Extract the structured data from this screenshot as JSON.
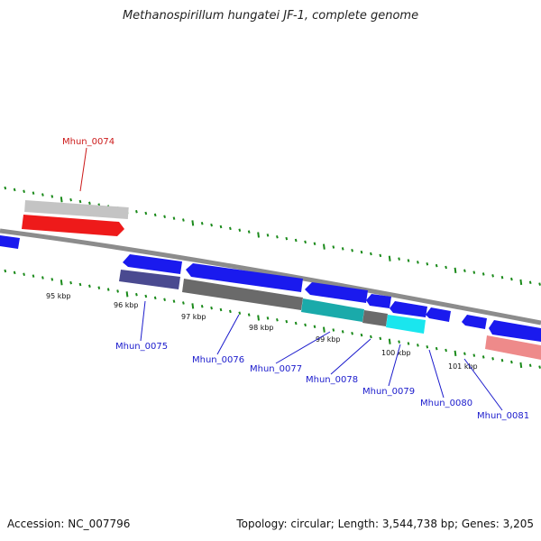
{
  "title": "Methanospirillum hungatei JF-1, complete genome",
  "footer": {
    "accession": "Accession: NC_007796",
    "summary": "Topology: circular; Length: 3,544,738 bp; Genes: 3,205"
  },
  "colors": {
    "backbone": "#8c8c8c",
    "tick": "#1a8a1a",
    "label_blue": "#1a1acc",
    "label_red": "#cc1a1a"
  },
  "kbp_labels": [
    "95 kbp",
    "96 kbp",
    "97 kbp",
    "98 kbp",
    "99 kbp",
    "100 kbp",
    "101 kbp"
  ],
  "genes": [
    {
      "id": "g1",
      "label": "",
      "color": "#1a1aee"
    },
    {
      "id": "g2",
      "label": "",
      "color": "#1a1aee"
    },
    {
      "id": "g3",
      "label": "",
      "color": "#1a1aee"
    },
    {
      "id": "g4",
      "label": "",
      "color": "#1a1aee"
    },
    {
      "id": "g5",
      "label": "",
      "color": "#1a1aee"
    },
    {
      "id": "g6",
      "label": "",
      "color": "#1a1aee"
    },
    {
      "id": "g7",
      "label": "",
      "color": "#1a1aee"
    },
    {
      "id": "g8",
      "label": "",
      "color": "#1a1aee"
    },
    {
      "id": "g9",
      "label": "",
      "color": "#1a1aee"
    },
    {
      "id": "g10",
      "label": "",
      "color": "#ee1a1a"
    }
  ],
  "features": [
    {
      "label": "Mhun_0074",
      "color": "#cc1a1a"
    },
    {
      "label": "Mhun_0075",
      "color": "#1a1acc"
    },
    {
      "label": "Mhun_0076",
      "color": "#1a1acc"
    },
    {
      "label": "Mhun_0077",
      "color": "#1a1acc"
    },
    {
      "label": "Mhun_0078",
      "color": "#1a1acc"
    },
    {
      "label": "Mhun_0079",
      "color": "#1a1acc"
    },
    {
      "label": "Mhun_0080",
      "color": "#1a1acc"
    },
    {
      "label": "Mhun_0081",
      "color": "#1a1acc"
    }
  ]
}
